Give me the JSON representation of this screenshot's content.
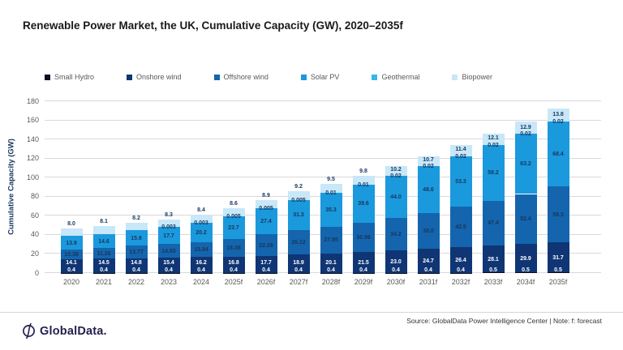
{
  "page": {
    "logo_text": "GlobalData.",
    "source_note": "Source: GlobalData Power Intelligence Center | Note: f: forecast"
  },
  "chart_data": {
    "type": "bar",
    "stacked": true,
    "title": "Renewable Power Market, the UK, Cumulative Capacity (GW), 2020–2035f",
    "ylabel": "Cumulative Capacity (GW)",
    "ylim": [
      0,
      180
    ],
    "ytick_step": 20,
    "grid": true,
    "legend_position": "top",
    "categories": [
      "2020",
      "2021",
      "2022",
      "2023",
      "2024",
      "2025f",
      "2026f",
      "2027f",
      "2028f",
      "2029f",
      "2030f",
      "2031f",
      "2032f",
      "2033f",
      "2034f",
      "2035f"
    ],
    "series": [
      {
        "name": "Small Hydro",
        "color": "#0c0c20",
        "label_color": "#ffffff",
        "values": [
          0.4,
          0.4,
          0.4,
          0.4,
          0.4,
          0.4,
          0.4,
          0.4,
          0.4,
          0.4,
          0.4,
          0.4,
          0.4,
          0.5,
          0.5,
          0.5
        ],
        "labels": [
          "0.4",
          "0.4",
          "0.4",
          "0.4",
          "0.4",
          "0.4",
          "0.4",
          "0.4",
          "0.4",
          "0.4",
          "0.4",
          "0.4",
          "0.4",
          "0.5",
          "0.5",
          "0.5"
        ]
      },
      {
        "name": "Onshore wind",
        "color": "#0f3574",
        "label_color": "#ffffff",
        "values": [
          14.1,
          14.5,
          14.8,
          15.4,
          16.2,
          16.8,
          17.7,
          18.9,
          20.1,
          21.5,
          23.0,
          24.7,
          26.4,
          28.1,
          29.9,
          31.7
        ],
        "labels": [
          "14.1",
          "14.5",
          "14.8",
          "15.4",
          "16.2",
          "16.8",
          "17.7",
          "18.9",
          "20.1",
          "21.5",
          "23.0",
          "24.7",
          "26.4",
          "28.1",
          "29.9",
          "31.7"
        ]
      },
      {
        "name": "Offshore wind",
        "color": "#1465ad",
        "label_color": "#17375e",
        "values": [
          10.38,
          11.26,
          13.77,
          14.65,
          15.84,
          18.38,
          22.26,
          26.12,
          27.95,
          30.96,
          34.2,
          38.0,
          42.5,
          47.4,
          52.4,
          58.3
        ],
        "labels": [
          "10.38",
          "11.26",
          "13.77",
          "14.65",
          "15.84",
          "18.38",
          "22.26",
          "26.12",
          "27.95",
          "30.96",
          "34.2",
          "38.0",
          "42.5",
          "47.4",
          "52.4",
          "58.3"
        ]
      },
      {
        "name": "Solar PV",
        "color": "#1b99dd",
        "label_color": "#17375e",
        "values": [
          13.9,
          14.6,
          15.9,
          17.7,
          20.2,
          23.7,
          27.4,
          31.3,
          35.3,
          39.6,
          44.0,
          48.6,
          53.3,
          58.2,
          63.2,
          68.4
        ],
        "labels": [
          "13.9",
          "14.6",
          "15.9",
          "17.7",
          "20.2",
          "23.7",
          "27.4",
          "31.3",
          "35.3",
          "39.6",
          "44.0",
          "48.6",
          "53.3",
          "58.2",
          "63.2",
          "68.4"
        ]
      },
      {
        "name": "Geothermal",
        "color": "#38b5ea",
        "label_color": "#17375e",
        "values": [
          0,
          0,
          0,
          0.003,
          0.003,
          0.005,
          0.005,
          0.005,
          0.01,
          0.01,
          0.02,
          0.02,
          0.02,
          0.02,
          0.02,
          0.02
        ],
        "labels": [
          null,
          null,
          null,
          "0.003",
          "0.003",
          "0.005",
          "0.005",
          "0.005",
          "0.01",
          "0.01",
          "0.02",
          "0.02",
          "0.02",
          "0.02",
          "0.02",
          "0.02"
        ]
      },
      {
        "name": "Biopower",
        "color": "#c8e7f8",
        "label_color": "#17375e",
        "values": [
          8.0,
          8.1,
          8.2,
          8.3,
          8.4,
          8.6,
          8.9,
          9.2,
          9.5,
          9.8,
          10.2,
          10.7,
          11.4,
          12.1,
          12.9,
          13.8
        ],
        "labels": [
          "8.0",
          "8.1",
          "8.2",
          "8.3",
          "8.4",
          "8.6",
          "8.9",
          "9.2",
          "9.5",
          "9.8",
          "10.2",
          "10.7",
          "11.4",
          "12.1",
          "12.9",
          "13.8"
        ]
      }
    ]
  }
}
